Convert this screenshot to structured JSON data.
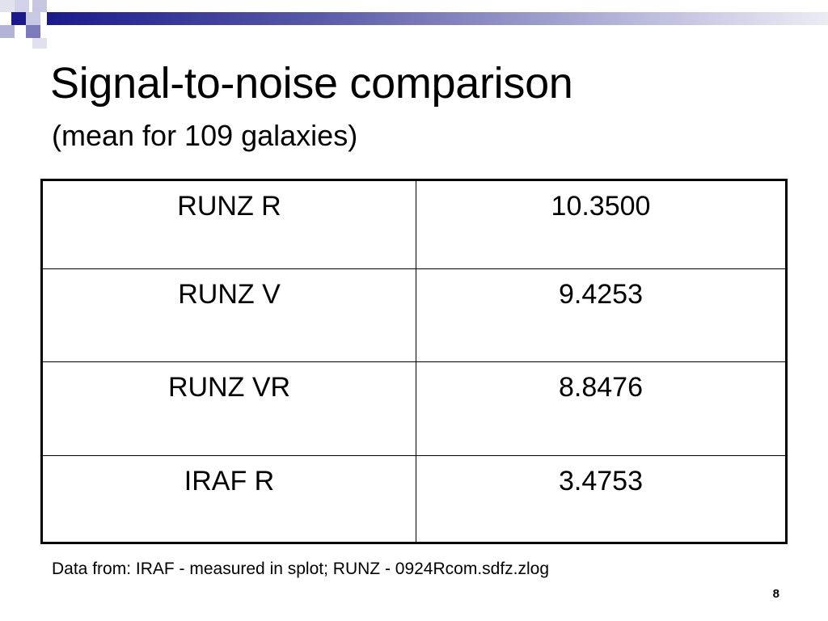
{
  "slide": {
    "title": "Signal-to-noise comparison",
    "subtitle": "(mean for 109 galaxies)",
    "table": {
      "rows": [
        {
          "label": "RUNZ R",
          "value": "10.3500"
        },
        {
          "label": "RUNZ V",
          "value": "9.4253"
        },
        {
          "label": "RUNZ VR",
          "value": "8.8476"
        },
        {
          "label": "IRAF R",
          "value": "3.4753"
        }
      ]
    },
    "footnote": "Data from: IRAF - measured in splot; RUNZ - 0924Rcom.sdfz.zlog",
    "page_number": "8"
  },
  "colors": {
    "accent": "#1a1a8c",
    "accent_light": "#8c8ccc",
    "band_fade": "#e6e6f2"
  }
}
